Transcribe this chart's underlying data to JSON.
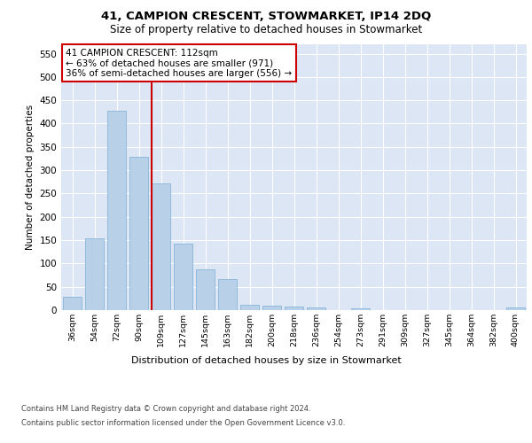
{
  "title1": "41, CAMPION CRESCENT, STOWMARKET, IP14 2DQ",
  "title2": "Size of property relative to detached houses in Stowmarket",
  "xlabel": "Distribution of detached houses by size in Stowmarket",
  "ylabel": "Number of detached properties",
  "categories": [
    "36sqm",
    "54sqm",
    "72sqm",
    "90sqm",
    "109sqm",
    "127sqm",
    "145sqm",
    "163sqm",
    "182sqm",
    "200sqm",
    "218sqm",
    "236sqm",
    "254sqm",
    "273sqm",
    "291sqm",
    "309sqm",
    "327sqm",
    "345sqm",
    "364sqm",
    "382sqm",
    "400sqm"
  ],
  "values": [
    28,
    153,
    428,
    329,
    272,
    143,
    88,
    67,
    12,
    10,
    7,
    5,
    0,
    4,
    0,
    0,
    0,
    0,
    0,
    0,
    6
  ],
  "bar_color": "#b8d0e8",
  "bar_edge_color": "#7aaed4",
  "property_bin_index": 4,
  "property_sqm": 112,
  "pct_smaller": 63,
  "count_smaller": 971,
  "pct_larger_semi": 36,
  "count_larger_semi": 556,
  "annotation_box_color": "#cc0000",
  "ylim": [
    0,
    570
  ],
  "yticks": [
    0,
    50,
    100,
    150,
    200,
    250,
    300,
    350,
    400,
    450,
    500,
    550
  ],
  "background_color": "#dce6f5",
  "footnote1": "Contains HM Land Registry data © Crown copyright and database right 2024.",
  "footnote2": "Contains public sector information licensed under the Open Government Licence v3.0."
}
